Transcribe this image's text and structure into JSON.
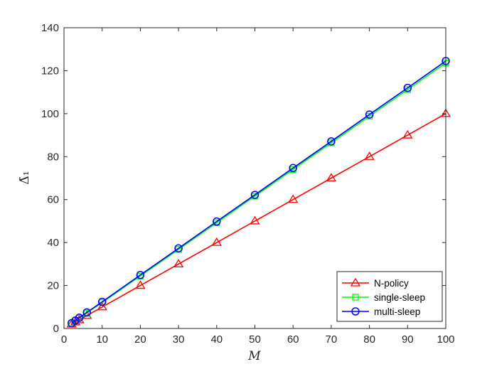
{
  "chart_data": {
    "type": "line",
    "xlabel": "M",
    "ylabel": "Δ̄₁",
    "xlim": [
      0,
      100
    ],
    "ylim": [
      0,
      140
    ],
    "xticks": [
      0,
      10,
      20,
      30,
      40,
      50,
      60,
      70,
      80,
      90,
      100
    ],
    "yticks": [
      0,
      20,
      40,
      60,
      80,
      100,
      120,
      140
    ],
    "grid": false,
    "legend_position": "bottom-right",
    "x": [
      2,
      3,
      4,
      6,
      10,
      20,
      30,
      40,
      50,
      60,
      70,
      80,
      90,
      100
    ],
    "series": [
      {
        "name": "N-policy",
        "color": "#ff0000",
        "marker": "triangle",
        "values": [
          2,
          3,
          4,
          6,
          10,
          20,
          30,
          40,
          50,
          60,
          70,
          80,
          90,
          100
        ]
      },
      {
        "name": "single-sleep",
        "color": "#00ff00",
        "marker": "square",
        "values": [
          2.3,
          3.6,
          4.8,
          7.2,
          12.1,
          24.4,
          36.8,
          49.2,
          61.6,
          74,
          86.4,
          98.8,
          111.2,
          123.6
        ]
      },
      {
        "name": "multi-sleep",
        "color": "#0000ff",
        "marker": "circle",
        "values": [
          2.5,
          3.7,
          5,
          7.5,
          12.4,
          24.9,
          37.3,
          49.8,
          62.2,
          74.7,
          87.1,
          99.6,
          112,
          124.5
        ]
      }
    ]
  }
}
